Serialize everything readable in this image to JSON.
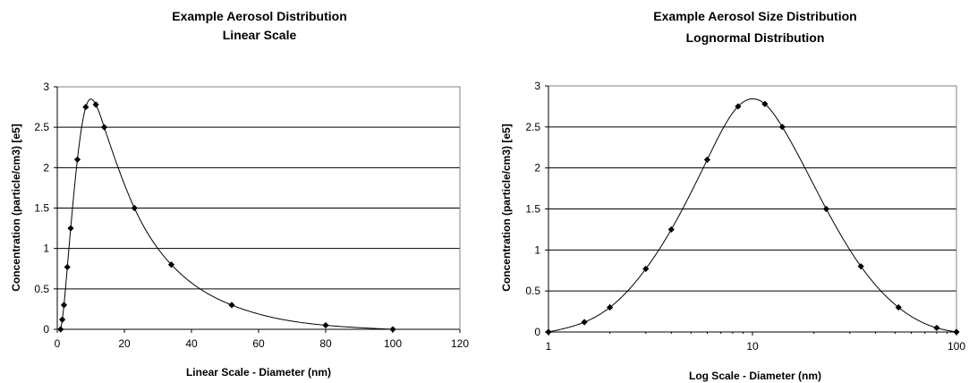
{
  "chart_data": [
    {
      "type": "scatter",
      "title_line1": "Example Aerosol Distribution",
      "title_line2": "Linear Scale",
      "xlabel": "Linear Scale - Diameter (nm)",
      "ylabel": "Concentration (particle/cm3) [e5]",
      "xscale": "linear",
      "xlim": [
        0,
        120
      ],
      "ylim": [
        0,
        3
      ],
      "xticks": [
        "0",
        "20",
        "40",
        "60",
        "80",
        "100",
        "120"
      ],
      "yticks": [
        "0",
        "0.5",
        "1",
        "1.5",
        "2",
        "2.5",
        "3"
      ],
      "grid": "horizontal",
      "series": [
        {
          "x": [
            1,
            1.5,
            2,
            3,
            4,
            6,
            8.5,
            11.5,
            14,
            23,
            34,
            52,
            80,
            100
          ],
          "y": [
            0.0,
            0.12,
            0.3,
            0.77,
            1.25,
            2.1,
            2.75,
            2.78,
            2.5,
            1.5,
            0.8,
            0.3,
            0.05,
            0.0
          ]
        }
      ]
    },
    {
      "type": "scatter",
      "title_line1": "Example Aerosol Size Distribution",
      "title_line2": "Lognormal Distribution",
      "xlabel": "Log Scale - Diameter (nm)",
      "ylabel": "Concentration (particle/cm3) [e5]",
      "xscale": "log",
      "xlim": [
        1,
        100
      ],
      "ylim": [
        0,
        3
      ],
      "xticks": [
        "1",
        "10",
        "100"
      ],
      "yticks": [
        "0",
        "0.5",
        "1",
        "1.5",
        "2",
        "2.5",
        "3"
      ],
      "grid": "horizontal",
      "series": [
        {
          "x": [
            1,
            1.5,
            2,
            3,
            4,
            6,
            8.5,
            11.5,
            14,
            23,
            34,
            52,
            80,
            100
          ],
          "y": [
            0.0,
            0.12,
            0.3,
            0.77,
            1.25,
            2.1,
            2.75,
            2.78,
            2.5,
            1.5,
            0.8,
            0.3,
            0.05,
            0.0
          ]
        }
      ]
    }
  ]
}
